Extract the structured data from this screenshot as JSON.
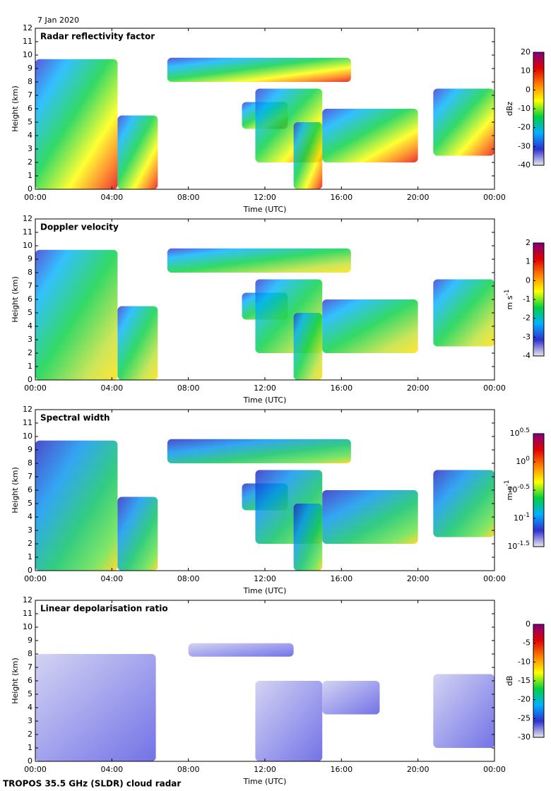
{
  "date": "7 Jan 2020",
  "footer": "TROPOS 35.5 GHz (SLDR) cloud radar",
  "chart_data": [
    {
      "type": "heatmap",
      "title": "Radar reflectivity factor",
      "x_label": "Time (UTC)",
      "y_label": "Height (km)",
      "xlim": [
        0,
        24
      ],
      "xticks": [
        {
          "value": 0,
          "label": "00:00"
        },
        {
          "value": 4,
          "label": "04:00"
        },
        {
          "value": 8,
          "label": "08:00"
        },
        {
          "value": 12,
          "label": "12:00"
        },
        {
          "value": 16,
          "label": "16:00"
        },
        {
          "value": 20,
          "label": "20:00"
        },
        {
          "value": 24,
          "label": "00:00"
        }
      ],
      "ylim": [
        0,
        12
      ],
      "yticks": [
        0,
        1,
        2,
        3,
        4,
        5,
        6,
        7,
        8,
        9,
        10,
        11,
        12
      ],
      "colorbar": {
        "label": "dBz",
        "lim": [
          -40,
          20
        ],
        "ticks": [
          -40,
          -30,
          -20,
          -10,
          0,
          10,
          20
        ],
        "log": false,
        "colors": [
          "#e8e8ee",
          "#3030d0",
          "#00b0ff",
          "#00d040",
          "#ffff00",
          "#ff8000",
          "#e00000",
          "#800080"
        ]
      }
    },
    {
      "type": "heatmap",
      "title": "Doppler velocity",
      "x_label": "Time (UTC)",
      "y_label": "Height (km)",
      "xlim": [
        0,
        24
      ],
      "xticks": [
        {
          "value": 0,
          "label": "00:00"
        },
        {
          "value": 4,
          "label": "04:00"
        },
        {
          "value": 8,
          "label": "08:00"
        },
        {
          "value": 12,
          "label": "12:00"
        },
        {
          "value": 16,
          "label": "16:00"
        },
        {
          "value": 20,
          "label": "20:00"
        },
        {
          "value": 24,
          "label": "00:00"
        }
      ],
      "ylim": [
        0,
        12
      ],
      "yticks": [
        0,
        1,
        2,
        3,
        4,
        5,
        6,
        7,
        8,
        9,
        10,
        11,
        12
      ],
      "colorbar": {
        "label": "m s",
        "label_sup": "-1",
        "lim": [
          -4,
          2
        ],
        "ticks": [
          -4,
          -3,
          -2,
          -1,
          0,
          1,
          2
        ],
        "log": false,
        "colors": [
          "#e8e8ee",
          "#3030d0",
          "#00b0ff",
          "#00d040",
          "#ffff00",
          "#ff8000",
          "#e00000",
          "#800080"
        ]
      }
    },
    {
      "type": "heatmap",
      "title": "Spectral width",
      "x_label": "Time (UTC)",
      "y_label": "Height (km)",
      "xlim": [
        0,
        24
      ],
      "xticks": [
        {
          "value": 0,
          "label": "00:00"
        },
        {
          "value": 4,
          "label": "04:00"
        },
        {
          "value": 8,
          "label": "08:00"
        },
        {
          "value": 12,
          "label": "12:00"
        },
        {
          "value": 16,
          "label": "16:00"
        },
        {
          "value": 20,
          "label": "20:00"
        },
        {
          "value": 24,
          "label": "00:00"
        }
      ],
      "ylim": [
        0,
        12
      ],
      "yticks": [
        0,
        1,
        2,
        3,
        4,
        5,
        6,
        7,
        8,
        9,
        10,
        11,
        12
      ],
      "colorbar": {
        "label": "m s",
        "label_sup": "-1",
        "lim": [
          0.03162,
          3.162
        ],
        "log": true,
        "ticks": [
          {
            "value": 0.03162,
            "label": "10",
            "sup": "-1.5"
          },
          {
            "value": 0.1,
            "label": "10",
            "sup": "-1"
          },
          {
            "value": 0.3162,
            "label": "10",
            "sup": "-0.5"
          },
          {
            "value": 1,
            "label": "10",
            "sup": "0"
          },
          {
            "value": 3.162,
            "label": "10",
            "sup": "0.5"
          }
        ],
        "colors": [
          "#e8e8ee",
          "#3030d0",
          "#00b0ff",
          "#00d040",
          "#ffff00",
          "#ff8000",
          "#e00000",
          "#800080"
        ]
      }
    },
    {
      "type": "heatmap",
      "title": "Linear depolarisation ratio",
      "x_label": "Time (UTC)",
      "y_label": "Height (km)",
      "xlim": [
        0,
        24
      ],
      "xticks": [
        {
          "value": 0,
          "label": "00:00"
        },
        {
          "value": 4,
          "label": "04:00"
        },
        {
          "value": 8,
          "label": "08:00"
        },
        {
          "value": 12,
          "label": "12:00"
        },
        {
          "value": 16,
          "label": "16:00"
        },
        {
          "value": 20,
          "label": "20:00"
        },
        {
          "value": 24,
          "label": "00:00"
        }
      ],
      "ylim": [
        0,
        12
      ],
      "yticks": [
        0,
        1,
        2,
        3,
        4,
        5,
        6,
        7,
        8,
        9,
        10,
        11,
        12
      ],
      "colorbar": {
        "label": "dB",
        "lim": [
          -30,
          0
        ],
        "ticks": [
          -30,
          -25,
          -20,
          -15,
          -10,
          -5,
          0
        ],
        "log": false,
        "colors": [
          "#e8e8ee",
          "#3030d0",
          "#00b0ff",
          "#00d040",
          "#ffff00",
          "#ff8000",
          "#e00000",
          "#800080"
        ]
      }
    }
  ]
}
